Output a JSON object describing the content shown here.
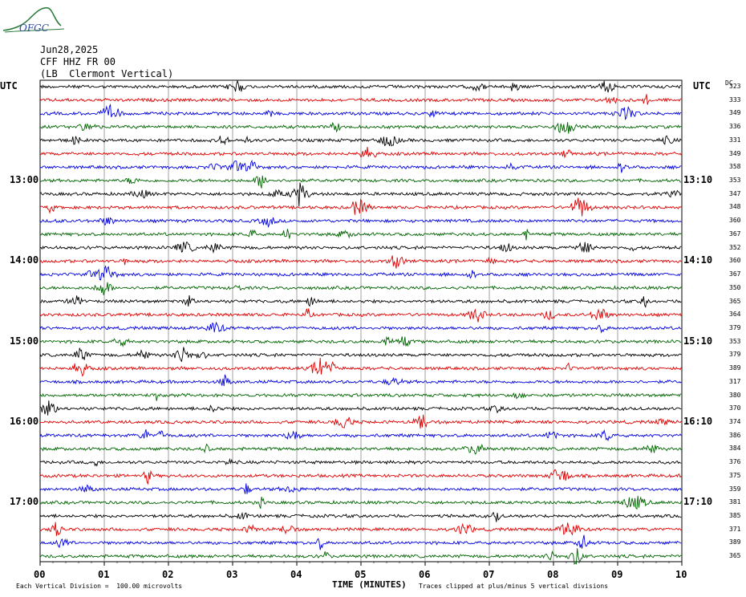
{
  "logo": {
    "text": "OFGC"
  },
  "header": {
    "date": "Jun28,2025",
    "station": "CFF HHZ FR 00",
    "location": "(LB  Clermont Vertical)"
  },
  "left_tz": "UTC",
  "right_tz": "UTC",
  "dc_label": "DC",
  "colors": {
    "trace_cycle": [
      "#000000",
      "#e00000",
      "#0000e0",
      "#006400"
    ]
  },
  "chart_data": {
    "type": "line",
    "description_free": true,
    "xlabel": "TIME (MINUTES)",
    "xlim": [
      0,
      10
    ],
    "x_ticks": [
      "00",
      "01",
      "02",
      "03",
      "04",
      "05",
      "06",
      "07",
      "08",
      "09",
      "10"
    ],
    "left_time_labels": [
      {
        "row": 7,
        "label": "13:00"
      },
      {
        "row": 13,
        "label": "14:00"
      },
      {
        "row": 19,
        "label": "15:00"
      },
      {
        "row": 25,
        "label": "16:00"
      },
      {
        "row": 31,
        "label": "17:00"
      }
    ],
    "right_time_labels": [
      {
        "row": 7,
        "label": "13:10"
      },
      {
        "row": 13,
        "label": "14:10"
      },
      {
        "row": 19,
        "label": "15:10"
      },
      {
        "row": 25,
        "label": "16:10"
      },
      {
        "row": 31,
        "label": "17:10"
      }
    ],
    "dc_offsets": [
      323,
      333,
      349,
      336,
      331,
      349,
      358,
      353,
      347,
      348,
      360,
      367,
      352,
      360,
      367,
      350,
      365,
      364,
      379,
      353,
      379,
      389,
      317,
      380,
      370,
      374,
      386,
      384,
      376,
      375,
      359,
      381,
      385,
      371,
      389,
      365
    ],
    "notes": {
      "scale": "Each Vertical Division =  100.00 microvolts",
      "clip": "Traces clipped at plus/minus 5 vertical divisions"
    }
  }
}
